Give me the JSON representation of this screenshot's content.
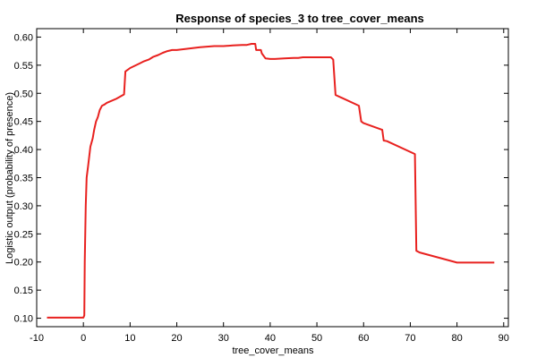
{
  "chart_data": {
    "type": "line",
    "title": "Response of species_3 to tree_cover_means",
    "xlabel": "tree_cover_means",
    "ylabel": "Logistic output (probability of presence)",
    "xlim": [
      -10,
      91
    ],
    "ylim": [
      0.085,
      0.615
    ],
    "xticks": [
      -10,
      0,
      10,
      20,
      30,
      40,
      50,
      60,
      70,
      80,
      90
    ],
    "yticks": [
      0.1,
      0.15,
      0.2,
      0.25,
      0.3,
      0.35,
      0.4,
      0.45,
      0.5,
      0.55,
      0.6
    ],
    "grid": false,
    "series": [
      {
        "color": "#e8211f",
        "x": [
          -7.8,
          0,
          0.2,
          0.3,
          0.5,
          0.7,
          1,
          1.5,
          2,
          2.3,
          2.7,
          3.1,
          3.5,
          4,
          4.5,
          5,
          7,
          8.7,
          9,
          9.2,
          10,
          11,
          12,
          13,
          14,
          15,
          16,
          17,
          18,
          19,
          20,
          22,
          25,
          28,
          30,
          32,
          34,
          35,
          36,
          36.8,
          37,
          38,
          38.2,
          39,
          40,
          41,
          43,
          45,
          46,
          47,
          50,
          53,
          53.5,
          54,
          59,
          59.5,
          60,
          64,
          64.3,
          65,
          71,
          71.3,
          72,
          80,
          88
        ],
        "y": [
          0.101,
          0.101,
          0.105,
          0.2,
          0.3,
          0.35,
          0.37,
          0.405,
          0.42,
          0.435,
          0.45,
          0.458,
          0.47,
          0.478,
          0.48,
          0.483,
          0.49,
          0.498,
          0.539,
          0.54,
          0.545,
          0.549,
          0.553,
          0.557,
          0.56,
          0.565,
          0.568,
          0.572,
          0.575,
          0.577,
          0.577,
          0.579,
          0.582,
          0.584,
          0.584,
          0.585,
          0.586,
          0.586,
          0.588,
          0.588,
          0.577,
          0.577,
          0.571,
          0.562,
          0.561,
          0.561,
          0.562,
          0.563,
          0.563,
          0.564,
          0.564,
          0.564,
          0.56,
          0.497,
          0.478,
          0.45,
          0.447,
          0.435,
          0.416,
          0.415,
          0.392,
          0.22,
          0.217,
          0.199,
          0.199
        ]
      }
    ]
  }
}
